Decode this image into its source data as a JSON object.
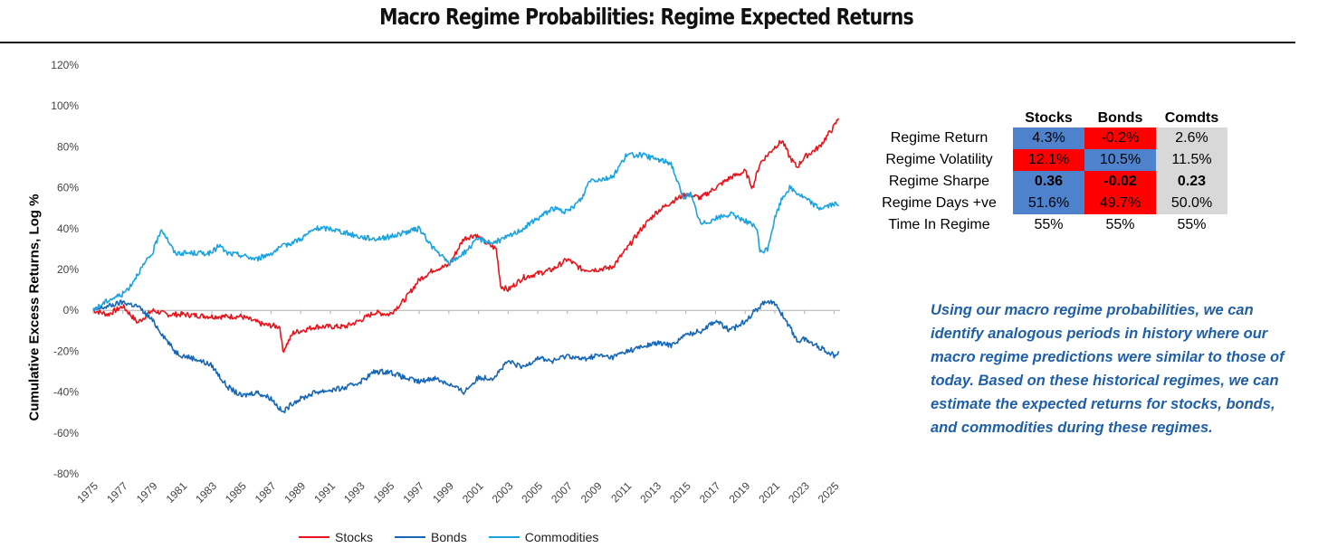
{
  "title": "Macro Regime Probabilities: Regime Expected Returns",
  "chart_data": {
    "type": "line",
    "ylabel": "Cumulative Excess Returns, Log %",
    "ylim": [
      -80,
      120
    ],
    "yticks": [
      "120%",
      "100%",
      "80%",
      "60%",
      "40%",
      "20%",
      "0%",
      "-20%",
      "-40%",
      "-60%",
      "-80%"
    ],
    "xlim": [
      1975,
      2025.4
    ],
    "xticks": [
      "1975",
      "1977",
      "1979",
      "1981",
      "1983",
      "1985",
      "1987",
      "1989",
      "1991",
      "1993",
      "1995",
      "1997",
      "1999",
      "2001",
      "2003",
      "2005",
      "2007",
      "2009",
      "2011",
      "2013",
      "2015",
      "2017",
      "2019",
      "2021",
      "2023",
      "2025"
    ],
    "legend": "bottom",
    "series": [
      {
        "name": "Stocks",
        "color": "#e8141b",
        "points": [
          [
            1975,
            0
          ],
          [
            1976,
            -2
          ],
          [
            1977,
            2
          ],
          [
            1978,
            -6
          ],
          [
            1979,
            0
          ],
          [
            1980,
            -2
          ],
          [
            1981,
            -2
          ],
          [
            1983,
            -3
          ],
          [
            1985,
            -3
          ],
          [
            1986.5,
            -7
          ],
          [
            1987.6,
            -8
          ],
          [
            1987.8,
            -20
          ],
          [
            1988.5,
            -11
          ],
          [
            1990,
            -8
          ],
          [
            1992,
            -8
          ],
          [
            1993,
            -5
          ],
          [
            1994,
            -1
          ],
          [
            1995,
            -2
          ],
          [
            1996,
            5
          ],
          [
            1997,
            15
          ],
          [
            1998,
            20
          ],
          [
            1999,
            22
          ],
          [
            2000,
            35
          ],
          [
            2000.8,
            37
          ],
          [
            2001.5,
            33
          ],
          [
            2002.2,
            30
          ],
          [
            2002.5,
            12
          ],
          [
            2003,
            10
          ],
          [
            2004,
            16
          ],
          [
            2006,
            20
          ],
          [
            2007,
            25
          ],
          [
            2008,
            20
          ],
          [
            2009,
            20
          ],
          [
            2010,
            21
          ],
          [
            2011,
            30
          ],
          [
            2012,
            40
          ],
          [
            2013,
            48
          ],
          [
            2014,
            53
          ],
          [
            2015,
            57
          ],
          [
            2016,
            55
          ],
          [
            2017,
            60
          ],
          [
            2018,
            65
          ],
          [
            2019,
            68
          ],
          [
            2019.5,
            60
          ],
          [
            2020,
            72
          ],
          [
            2021,
            80
          ],
          [
            2021.5,
            83
          ],
          [
            2022,
            75
          ],
          [
            2022.5,
            70
          ],
          [
            2023,
            75
          ],
          [
            2024,
            80
          ],
          [
            2025,
            90
          ],
          [
            2025.3,
            94
          ]
        ]
      },
      {
        "name": "Bonds",
        "color": "#1767b5",
        "points": [
          [
            1975,
            0
          ],
          [
            1976,
            2
          ],
          [
            1977,
            4
          ],
          [
            1978,
            2
          ],
          [
            1979,
            -5
          ],
          [
            1980,
            -15
          ],
          [
            1980.5,
            -20
          ],
          [
            1981,
            -22
          ],
          [
            1982,
            -24
          ],
          [
            1983,
            -27
          ],
          [
            1984,
            -37
          ],
          [
            1985,
            -42
          ],
          [
            1986,
            -40
          ],
          [
            1987,
            -43
          ],
          [
            1987.8,
            -50
          ],
          [
            1988.5,
            -45
          ],
          [
            1990,
            -40
          ],
          [
            1992,
            -38
          ],
          [
            1993,
            -35
          ],
          [
            1994,
            -30
          ],
          [
            1995,
            -30
          ],
          [
            1996,
            -33
          ],
          [
            1997,
            -35
          ],
          [
            1998,
            -33
          ],
          [
            1999,
            -36
          ],
          [
            2000,
            -40
          ],
          [
            2001,
            -33
          ],
          [
            2002,
            -33
          ],
          [
            2003,
            -25
          ],
          [
            2004,
            -28
          ],
          [
            2005,
            -23
          ],
          [
            2006,
            -25
          ],
          [
            2007,
            -22
          ],
          [
            2008,
            -24
          ],
          [
            2009,
            -22
          ],
          [
            2010,
            -23
          ],
          [
            2011,
            -20
          ],
          [
            2012,
            -18
          ],
          [
            2013,
            -16
          ],
          [
            2014,
            -17
          ],
          [
            2015,
            -12
          ],
          [
            2016,
            -10
          ],
          [
            2017,
            -5
          ],
          [
            2018,
            -10
          ],
          [
            2019,
            -5
          ],
          [
            2020,
            2
          ],
          [
            2020.5,
            5
          ],
          [
            2021,
            3
          ],
          [
            2021.5,
            -2
          ],
          [
            2022,
            -8
          ],
          [
            2022.5,
            -15
          ],
          [
            2023,
            -14
          ],
          [
            2024,
            -18
          ],
          [
            2025,
            -22
          ],
          [
            2025.3,
            -20
          ]
        ]
      },
      {
        "name": "Commodities",
        "color": "#1aa3e0",
        "points": [
          [
            1975,
            0
          ],
          [
            1976,
            5
          ],
          [
            1977,
            8
          ],
          [
            1977.5,
            12
          ],
          [
            1978,
            18
          ],
          [
            1979,
            28
          ],
          [
            1979.6,
            40
          ],
          [
            1980,
            35
          ],
          [
            1980.5,
            28
          ],
          [
            1981,
            28
          ],
          [
            1983,
            28
          ],
          [
            1983.5,
            32
          ],
          [
            1984,
            28
          ],
          [
            1985,
            27
          ],
          [
            1986,
            25
          ],
          [
            1987,
            28
          ],
          [
            1988,
            32
          ],
          [
            1989,
            35
          ],
          [
            1990,
            40
          ],
          [
            1991,
            40
          ],
          [
            1992,
            38
          ],
          [
            1993,
            36
          ],
          [
            1994,
            35
          ],
          [
            1995,
            36
          ],
          [
            1996,
            38
          ],
          [
            1997,
            40
          ],
          [
            1998,
            30
          ],
          [
            1999,
            23
          ],
          [
            2000,
            28
          ],
          [
            2001,
            35
          ],
          [
            2002,
            33
          ],
          [
            2003,
            36
          ],
          [
            2004,
            40
          ],
          [
            2005,
            45
          ],
          [
            2006,
            50
          ],
          [
            2007,
            48
          ],
          [
            2008,
            55
          ],
          [
            2008.5,
            64
          ],
          [
            2009,
            64
          ],
          [
            2010,
            65
          ],
          [
            2011,
            76
          ],
          [
            2012,
            76
          ],
          [
            2013,
            74
          ],
          [
            2014,
            72
          ],
          [
            2014.8,
            55
          ],
          [
            2015.3,
            57
          ],
          [
            2016,
            42
          ],
          [
            2017,
            45
          ],
          [
            2018,
            47
          ],
          [
            2019,
            44
          ],
          [
            2019.8,
            40
          ],
          [
            2020,
            28
          ],
          [
            2020.5,
            30
          ],
          [
            2021,
            45
          ],
          [
            2021.5,
            55
          ],
          [
            2022,
            60
          ],
          [
            2023,
            55
          ],
          [
            2024,
            50
          ],
          [
            2025,
            52
          ],
          [
            2025.3,
            51
          ]
        ]
      }
    ]
  },
  "stats_table": {
    "columns": [
      "Stocks",
      "Bonds",
      "Comdts"
    ],
    "rows": [
      {
        "label": "Regime Return",
        "cells": [
          {
            "v": "4.3%",
            "bg": "#4f82cc",
            "bold": false
          },
          {
            "v": "-0.2%",
            "bg": "#ff0000",
            "bold": false
          },
          {
            "v": "2.6%",
            "bg": "#d8d8d8",
            "bold": false
          }
        ]
      },
      {
        "label": "Regime Volatility",
        "cells": [
          {
            "v": "12.1%",
            "bg": "#ff0000",
            "bold": false
          },
          {
            "v": "10.5%",
            "bg": "#4f82cc",
            "bold": false
          },
          {
            "v": "11.5%",
            "bg": "#d8d8d8",
            "bold": false
          }
        ]
      },
      {
        "label": "Regime Sharpe",
        "cells": [
          {
            "v": "0.36",
            "bg": "#4f82cc",
            "bold": true
          },
          {
            "v": "-0.02",
            "bg": "#ff0000",
            "bold": true
          },
          {
            "v": "0.23",
            "bg": "#d8d8d8",
            "bold": true
          }
        ]
      },
      {
        "label": "Regime Days +ve",
        "cells": [
          {
            "v": "51.6%",
            "bg": "#4f82cc",
            "bold": false
          },
          {
            "v": "49.7%",
            "bg": "#ff0000",
            "bold": false
          },
          {
            "v": "50.0%",
            "bg": "#d8d8d8",
            "bold": false
          }
        ]
      },
      {
        "label": "Time In Regime",
        "cells": [
          {
            "v": "55%",
            "bg": "#ffffff",
            "bold": false
          },
          {
            "v": "55%",
            "bg": "#ffffff",
            "bold": false
          },
          {
            "v": "55%",
            "bg": "#ffffff",
            "bold": false
          }
        ]
      }
    ]
  },
  "note": "Using our macro regime probabilities, we can identify analogous periods in history where our macro regime predictions were similar to those of today. Based on these historical regimes, we can estimate the expected returns for stocks, bonds, and commodities during these regimes."
}
